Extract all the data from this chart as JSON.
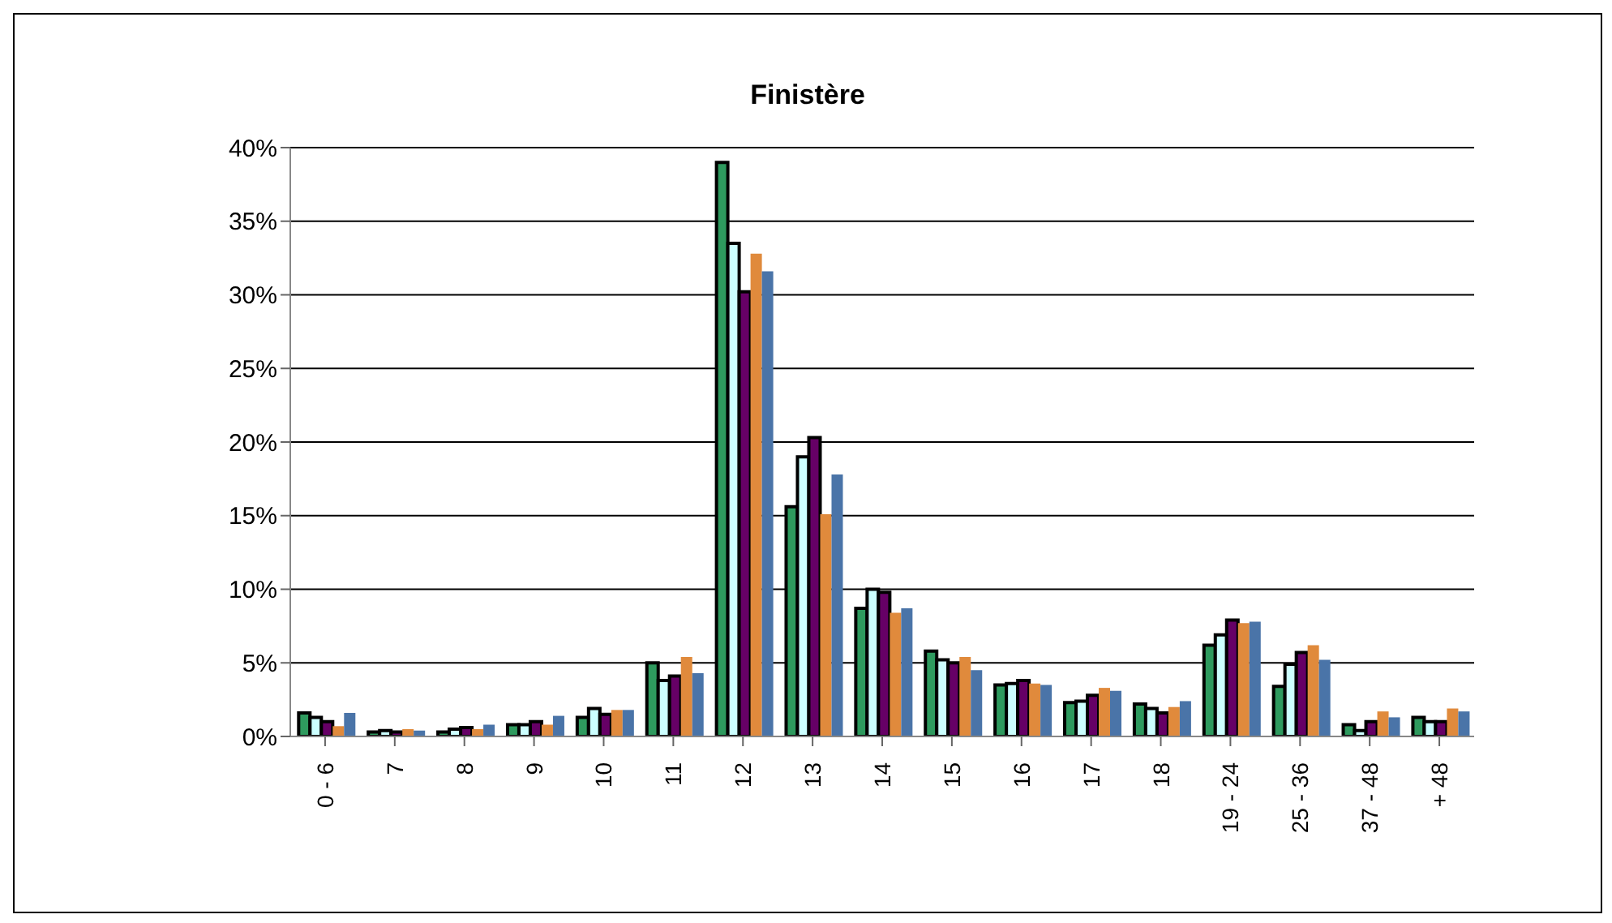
{
  "chart_data": {
    "type": "bar",
    "title": "Finistère",
    "categories": [
      "0 - 6",
      "7",
      "8",
      "9",
      "10",
      "11",
      "12",
      "13",
      "14",
      "15",
      "16",
      "17",
      "18",
      "19 - 24",
      "25 - 36",
      "37 - 48",
      "+ 48"
    ],
    "series": [
      {
        "color": "#2e9a5e",
        "values": [
          1.6,
          0.3,
          0.3,
          0.8,
          1.3,
          5.0,
          39.0,
          15.6,
          8.7,
          5.8,
          3.5,
          2.3,
          2.2,
          6.2,
          3.4,
          0.8,
          1.3
        ]
      },
      {
        "color": "#ccffff",
        "values": [
          1.3,
          0.4,
          0.5,
          0.8,
          1.9,
          3.8,
          33.5,
          19.0,
          10.0,
          5.2,
          3.6,
          2.4,
          1.9,
          6.9,
          4.9,
          0.4,
          1.0
        ]
      },
      {
        "color": "#660066",
        "values": [
          1.0,
          0.3,
          0.6,
          1.0,
          1.5,
          4.1,
          30.2,
          20.3,
          9.8,
          5.0,
          3.8,
          2.8,
          1.6,
          7.9,
          5.7,
          1.0,
          1.0
        ]
      },
      {
        "color": "#e08a3c",
        "values": [
          0.7,
          0.5,
          0.5,
          0.8,
          1.8,
          5.4,
          32.8,
          15.1,
          8.4,
          5.4,
          3.6,
          3.3,
          2.0,
          7.7,
          6.2,
          1.7,
          1.9
        ]
      },
      {
        "color": "#4a74a8",
        "values": [
          1.6,
          0.4,
          0.8,
          1.4,
          1.8,
          4.3,
          31.6,
          17.8,
          8.7,
          4.5,
          3.5,
          3.1,
          2.4,
          7.8,
          5.2,
          1.3,
          1.7
        ]
      }
    ],
    "ylim": [
      0,
      40
    ],
    "yticks": [
      {
        "value": 0,
        "label": "0%"
      },
      {
        "value": 5,
        "label": "5%"
      },
      {
        "value": 10,
        "label": "10%"
      },
      {
        "value": 15,
        "label": "15%"
      },
      {
        "value": 20,
        "label": "20%"
      },
      {
        "value": 25,
        "label": "25%"
      },
      {
        "value": 30,
        "label": "30%"
      },
      {
        "value": 35,
        "label": "35%"
      },
      {
        "value": 40,
        "label": "40%"
      }
    ],
    "grid": "y",
    "legend": false
  }
}
